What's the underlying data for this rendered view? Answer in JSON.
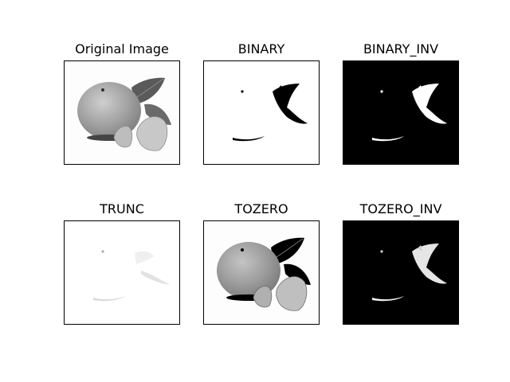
{
  "chart_data": [
    {
      "type": "image",
      "title": "Original Image",
      "mode": "original",
      "colormap": "gray",
      "axes_visible": false
    },
    {
      "type": "image",
      "title": "BINARY",
      "mode": "binary",
      "colormap": "gray",
      "axes_visible": false
    },
    {
      "type": "image",
      "title": "BINARY_INV",
      "mode": "binary_inv",
      "colormap": "gray",
      "axes_visible": false
    },
    {
      "type": "image",
      "title": "TRUNC",
      "mode": "trunc",
      "colormap": "gray",
      "axes_visible": false
    },
    {
      "type": "image",
      "title": "TOZERO",
      "mode": "tozero",
      "colormap": "gray",
      "axes_visible": false
    },
    {
      "type": "image",
      "title": "TOZERO_INV",
      "mode": "tozero_inv",
      "colormap": "gray",
      "axes_visible": false
    }
  ]
}
